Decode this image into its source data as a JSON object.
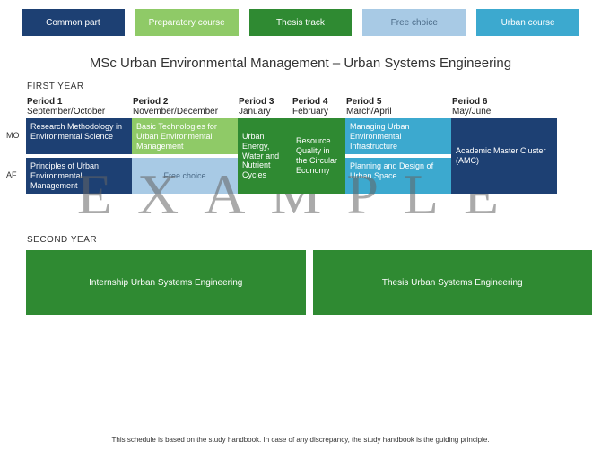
{
  "colors": {
    "common": "#1d4073",
    "preparatory": "#8fca67",
    "thesis": "#2f8a32",
    "free": "#a8cae5",
    "urban": "#3ca9cf",
    "free_text": "#4b6b88"
  },
  "legend": [
    {
      "label": "Common part",
      "colorKey": "common"
    },
    {
      "label": "Preparatory course",
      "colorKey": "preparatory"
    },
    {
      "label": "Thesis track",
      "colorKey": "thesis"
    },
    {
      "label": "Free choice",
      "colorKey": "free"
    },
    {
      "label": "Urban course",
      "colorKey": "urban"
    }
  ],
  "title": "MSc Urban Environmental Management – Urban Systems Engineering",
  "firstYearLabel": "FIRST YEAR",
  "secondYearLabel": "SECOND YEAR",
  "rowLabels": {
    "mo": "MO",
    "af": "AF"
  },
  "periods": [
    {
      "title": "Period 1",
      "sub": "September/October",
      "w": 118
    },
    {
      "title": "Period 2",
      "sub": "November/December",
      "w": 118
    },
    {
      "title": "Period 3",
      "sub": "January",
      "w": 60
    },
    {
      "title": "Period 4",
      "sub": "February",
      "w": 60
    },
    {
      "title": "Period 5",
      "sub": "March/April",
      "w": 118
    },
    {
      "title": "Period 6",
      "sub": "May/June",
      "w": 118
    }
  ],
  "firstYear": {
    "mo": [
      {
        "label": "Research Methodology in Environmental Science",
        "colorKey": "common",
        "w": 118
      },
      {
        "label": "Basic Technologies for Urban Environmental Management",
        "colorKey": "preparatory",
        "w": 118
      },
      {
        "label": "Urban Energy, Water and Nutrient Cycles",
        "colorKey": "thesis",
        "w": 60,
        "rowspan": 2
      },
      {
        "label": "Resource Quality in the Circular Economy",
        "colorKey": "thesis",
        "w": 60,
        "rowspan": 2
      },
      {
        "label": "Managing Urban Environmental Infrastructure",
        "colorKey": "urban",
        "w": 118
      },
      {
        "label": "Academic Master Cluster (AMC)",
        "colorKey": "common",
        "w": 118,
        "rowspan": 2
      }
    ],
    "af": [
      {
        "label": "Principles of Urban Environmental Management",
        "colorKey": "common",
        "w": 118
      },
      {
        "label": "Free choice",
        "colorKey": "free",
        "w": 118,
        "center": true
      },
      {
        "skip": true,
        "w": 60
      },
      {
        "skip": true,
        "w": 60
      },
      {
        "label": "Planning and Design of Urban Space",
        "colorKey": "urban",
        "w": 118
      },
      {
        "skip": true,
        "w": 118
      }
    ]
  },
  "secondYear": [
    {
      "label": "Internship Urban Systems Engineering",
      "colorKey": "thesis"
    },
    {
      "label": "Thesis Urban Systems Engineering",
      "colorKey": "thesis"
    }
  ],
  "watermark": "EXAMPLE",
  "footnote": "This schedule is based on the study handbook. In case of any discrepancy, the study handbook is the guiding principle."
}
